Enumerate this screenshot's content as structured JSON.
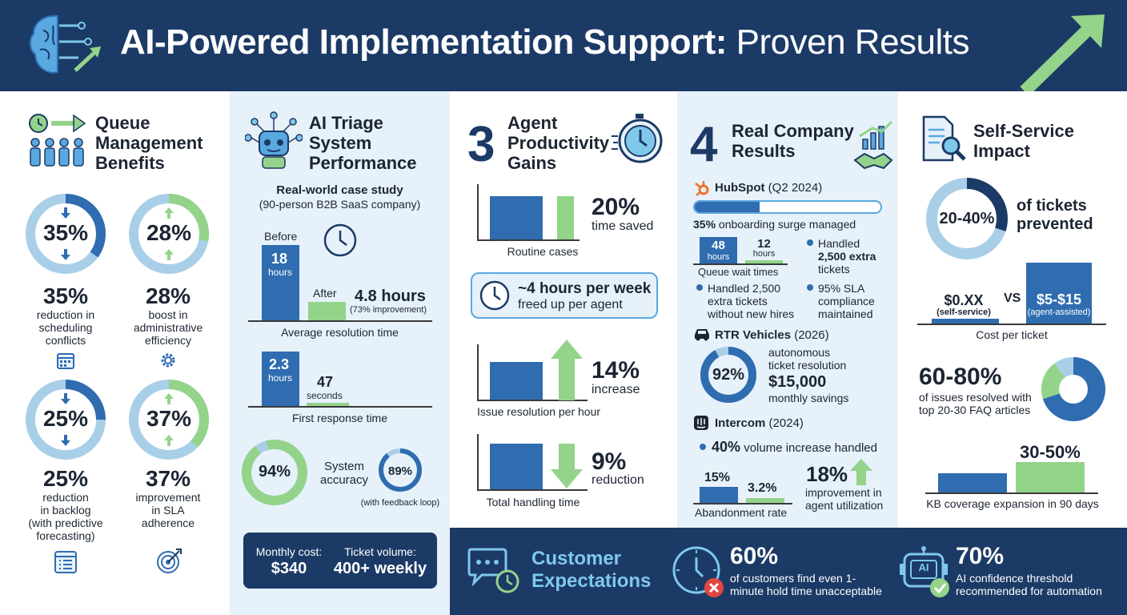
{
  "header": {
    "title_bold": "AI-Powered Implementation Support:",
    "title_light": "Proven Results"
  },
  "queue": {
    "title": [
      "Queue",
      "Management",
      "Benefits"
    ],
    "items": [
      {
        "pct": "35%",
        "value": 0.35,
        "big": "35%",
        "desc": [
          "reduction in",
          "scheduling",
          "conflicts"
        ]
      },
      {
        "pct": "28%",
        "value": 0.28,
        "big": "28%",
        "desc": [
          "boost in",
          "administrative",
          "efficiency"
        ]
      },
      {
        "pct": "25%",
        "value": 0.25,
        "big": "25%",
        "desc": [
          "reduction",
          "in backlog",
          "(with predictive",
          "forecasting)"
        ]
      },
      {
        "pct": "37%",
        "value": 0.37,
        "big": "37%",
        "desc": [
          "improvement",
          "in SLA",
          "adherence"
        ]
      }
    ]
  },
  "triage": {
    "title": [
      "AI Triage",
      "System",
      "Performance"
    ],
    "case_title": "Real-world case study",
    "case_sub": "(90-person B2B SaaS company)",
    "before_label": "Before",
    "before_value": "18",
    "before_unit": "hours",
    "after_label": "After",
    "after_value": "4.8 hours",
    "after_note": "(73% improvement)",
    "chart1_caption": "Average resolution time",
    "fr_before_value": "2.3",
    "fr_before_unit": "hours",
    "fr_after_value": "47",
    "fr_after_unit": "seconds",
    "chart2_caption": "First response time",
    "accuracy_pct": "94%",
    "accuracy_value": 0.94,
    "accuracy_label": [
      "System",
      "accuracy"
    ],
    "feedback_pct": "89%",
    "feedback_value": 0.89,
    "feedback_note": "(with feedback loop)",
    "cost_label": "Monthly cost:",
    "cost_value": "$340",
    "volume_label": "Ticket volume:",
    "volume_value": "400+ weekly"
  },
  "agent": {
    "num": "3",
    "title": [
      "Agent",
      "Productivity",
      "Gains"
    ],
    "routine_pct": "20%",
    "routine_desc": "time saved",
    "routine_caption": "Routine cases",
    "hours_big": "~4 hours per week",
    "hours_sub": "freed up per agent",
    "res_pct": "14%",
    "res_desc": "increase",
    "res_caption": "Issue resolution per hour",
    "handling_pct": "9%",
    "handling_desc": "reduction",
    "handling_caption": "Total handling time"
  },
  "company": {
    "num": "4",
    "title": [
      "Real Company",
      "Results"
    ],
    "hubspot_name": "HubSpot",
    "hubspot_period": "(Q2 2024)",
    "hubspot_progress": 0.35,
    "hubspot_surge_pct": "35%",
    "hubspot_surge_text": "onboarding surge managed",
    "q_before": "48",
    "q_before_unit": "hours",
    "q_after": "12",
    "q_after_unit": "hours",
    "q_caption": "Queue wait times",
    "hs_b1": [
      "Handled",
      "2,500 extra",
      "tickets"
    ],
    "hs_b2": [
      "Handled 2,500",
      "extra tickets",
      "without new hires"
    ],
    "hs_b3": [
      "95% SLA",
      "compliance",
      "maintained"
    ],
    "rtr_name": "RTR Vehicles",
    "rtr_year": "(2026)",
    "rtr_pct": "92%",
    "rtr_value": 0.92,
    "rtr_desc": [
      "autonomous",
      "ticket resolution"
    ],
    "rtr_savings": "$15,000",
    "rtr_savings_desc": "monthly savings",
    "intercom_name": "Intercom",
    "intercom_year": "(2024)",
    "ic_volume_pct": "40%",
    "ic_volume_text": "volume increase handled",
    "ab_before": "15%",
    "ab_after": "3.2%",
    "ab_caption": "Abandonment rate",
    "ic_util_pct": "18%",
    "ic_util_desc": [
      "improvement in",
      "agent utilization"
    ]
  },
  "self": {
    "title": [
      "Self-Service",
      "Impact"
    ],
    "ring_pct": "20-40%",
    "ring_value": 0.3,
    "ring_desc": [
      "of tickets",
      "prevented"
    ],
    "cost_self": "$0.XX",
    "cost_self_label": "(self-service)",
    "vs": "VS",
    "cost_agent": "$5-$15",
    "cost_agent_label": "(agent-assisted)",
    "cost_caption": "Cost per ticket",
    "faq_pct": "60-80%",
    "faq_value": 0.7,
    "faq_desc": [
      "of issues resolved with",
      "top 20-30 FAQ articles"
    ],
    "kb_pct": "30-50%",
    "kb_caption": "KB coverage expansion in 90 days"
  },
  "bottom": {
    "title": [
      "Customer",
      "Expectations"
    ],
    "hold_pct": "60%",
    "hold_desc": [
      "of customers find even 1-",
      "minute hold time unacceptable"
    ],
    "ai_pct": "70%",
    "ai_desc": [
      "AI confidence threshold",
      "recommended for automation"
    ],
    "ai_icon_text": "AI"
  },
  "colors": {
    "navy": "#1c3a66",
    "blue": "#2f6cb0",
    "light_blue": "#a9cfe8",
    "green": "#93d38a",
    "panel": "#e6f1fa"
  }
}
